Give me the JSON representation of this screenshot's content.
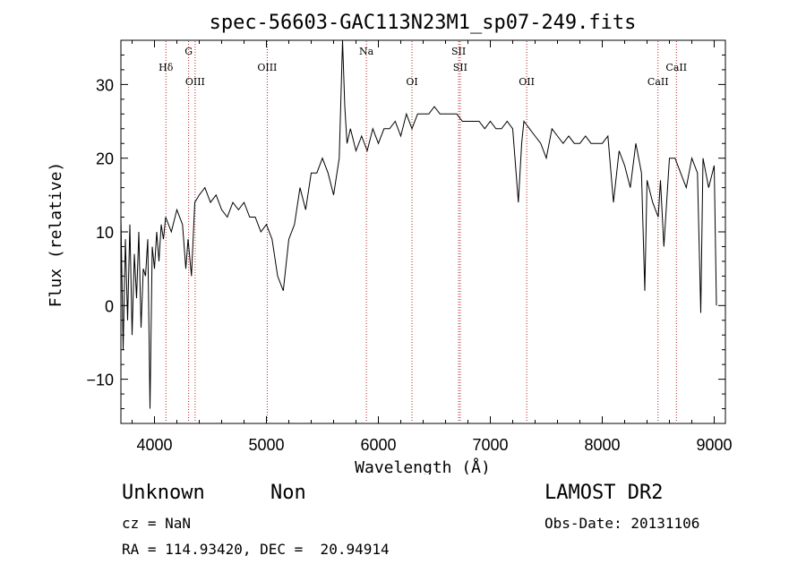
{
  "chart_data": {
    "type": "line",
    "title": "spec-56603-GAC113N23M1_sp07-249.fits",
    "xlabel": "Wavelength (Å)",
    "ylabel": "Flux (relative)",
    "xlim": [
      3700,
      9100
    ],
    "ylim": [
      -16,
      36
    ],
    "xticks": [
      4000,
      5000,
      6000,
      7000,
      8000,
      9000
    ],
    "yticks": [
      -10,
      0,
      10,
      20,
      30
    ],
    "grid": false,
    "line_color": "#000000",
    "marker_color": "#b22222",
    "lines": [
      {
        "label": "Hδ",
        "wavelength": 4102,
        "row": "upper"
      },
      {
        "label": "G",
        "wavelength": 4305,
        "row": "top"
      },
      {
        "label": "OIII",
        "wavelength": 4363,
        "row": "lower"
      },
      {
        "label": "OIII",
        "wavelength": 5007,
        "row": "upper"
      },
      {
        "label": "Na",
        "wavelength": 5893,
        "row": "top"
      },
      {
        "label": "OI",
        "wavelength": 6300,
        "row": "lower"
      },
      {
        "label": "SII",
        "wavelength": 6717,
        "row": "top"
      },
      {
        "label": "SII",
        "wavelength": 6731,
        "row": "upper"
      },
      {
        "label": "OII",
        "wavelength": 7325,
        "row": "lower"
      },
      {
        "label": "CaII",
        "wavelength": 8498,
        "row": "lower"
      },
      {
        "label": "CaII",
        "wavelength": 8662,
        "row": "upper"
      }
    ],
    "series": [
      {
        "x": [
          3700,
          3720,
          3740,
          3760,
          3780,
          3800,
          3820,
          3840,
          3860,
          3880,
          3900,
          3920,
          3940,
          3960,
          3980,
          4000,
          4020,
          4040,
          4060,
          4080,
          4100,
          4150,
          4200,
          4250,
          4280,
          4300,
          4330,
          4360,
          4400,
          4450,
          4500,
          4550,
          4600,
          4650,
          4700,
          4750,
          4800,
          4850,
          4900,
          4950,
          5000,
          5050,
          5100,
          5150,
          5200,
          5250,
          5300,
          5350,
          5400,
          5450,
          5500,
          5550,
          5600,
          5650,
          5680,
          5700,
          5720,
          5750,
          5800,
          5850,
          5900,
          5950,
          6000,
          6050,
          6100,
          6150,
          6200,
          6250,
          6300,
          6350,
          6400,
          6450,
          6500,
          6550,
          6600,
          6650,
          6700,
          6750,
          6800,
          6850,
          6900,
          6950,
          7000,
          7050,
          7100,
          7150,
          7200,
          7250,
          7280,
          7300,
          7350,
          7400,
          7450,
          7500,
          7550,
          7600,
          7650,
          7700,
          7750,
          7800,
          7850,
          7900,
          7950,
          8000,
          8050,
          8100,
          8150,
          8200,
          8250,
          8300,
          8350,
          8380,
          8400,
          8450,
          8500,
          8520,
          8550,
          8600,
          8650,
          8700,
          8750,
          8800,
          8850,
          8880,
          8900,
          8950,
          9000,
          9020
        ],
        "y": [
          12,
          -6,
          9,
          -2,
          11,
          -4,
          7,
          1,
          10,
          -3,
          5,
          4,
          9,
          -14,
          8,
          5,
          10,
          6,
          11,
          9,
          12,
          10,
          13,
          11,
          5,
          9,
          4,
          14,
          15,
          16,
          14,
          15,
          13,
          12,
          14,
          13,
          14,
          12,
          12,
          10,
          11,
          9,
          4,
          2,
          9,
          11,
          16,
          13,
          18,
          18,
          20,
          18,
          15,
          20,
          36,
          27,
          22,
          24,
          21,
          23,
          21,
          24,
          22,
          24,
          24,
          25,
          23,
          26,
          24,
          26,
          26,
          26,
          27,
          26,
          26,
          26,
          26,
          25,
          25,
          25,
          25,
          24,
          25,
          24,
          24,
          25,
          24,
          14,
          22,
          25,
          24,
          23,
          22,
          20,
          24,
          23,
          22,
          23,
          22,
          22,
          23,
          22,
          22,
          22,
          23,
          14,
          21,
          19,
          16,
          22,
          18,
          2,
          17,
          14,
          12,
          17,
          8,
          20,
          20,
          18,
          16,
          20,
          18,
          -1,
          20,
          16,
          19,
          0
        ]
      }
    ]
  },
  "info": {
    "object_type": "Unknown",
    "subclass": "Non",
    "survey": "LAMOST DR2",
    "cz": "cz = NaN",
    "obs_date": "Obs-Date: 20131106",
    "coords": "RA = 114.93420, DEC =  20.94914"
  }
}
